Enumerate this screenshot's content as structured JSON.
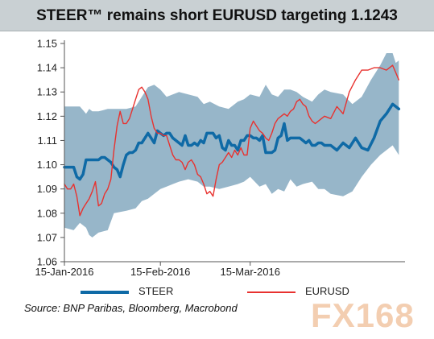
{
  "title": "STEER™ remains short EURUSD targeting 1.1243",
  "source": "Source:  BNP Paribas, Bloomberg, Macrobond",
  "watermark": "FX168",
  "colors": {
    "steer": "#0f6aa6",
    "eurusd": "#e8322f",
    "band": "#97b6c9",
    "axis": "#555555"
  },
  "chart_data": {
    "type": "line",
    "title": "STEER™ remains short EURUSD targeting 1.1243",
    "ylim": [
      1.06,
      1.15
    ],
    "y_ticks": [
      "1.06",
      "1.07",
      "1.08",
      "1.09",
      "1.10",
      "1.11",
      "1.12",
      "1.13",
      "1.14",
      "1.15"
    ],
    "x_range": [
      0,
      110
    ],
    "x_ticks": [
      {
        "x": 0,
        "label": "15-Jan-2016"
      },
      {
        "x": 31,
        "label": "15-Feb-2016"
      },
      {
        "x": 60,
        "label": "15-Mar-2016"
      }
    ],
    "legend": [
      "STEER",
      "EURUSD"
    ],
    "band": {
      "x": [
        0,
        3,
        5,
        7,
        8,
        9,
        11,
        14,
        16,
        20,
        23,
        25,
        27,
        29,
        31,
        33,
        35,
        37,
        40,
        43,
        45,
        47,
        50,
        53,
        56,
        58,
        60,
        63,
        65,
        67,
        69,
        71,
        73,
        75,
        77,
        80,
        82,
        84,
        86,
        90,
        93,
        96,
        99,
        102,
        104,
        106,
        107,
        108
      ],
      "upper": [
        1.124,
        1.124,
        1.124,
        1.121,
        1.123,
        1.122,
        1.122,
        1.123,
        1.123,
        1.123,
        1.124,
        1.128,
        1.132,
        1.133,
        1.131,
        1.128,
        1.129,
        1.13,
        1.129,
        1.128,
        1.125,
        1.126,
        1.124,
        1.123,
        1.126,
        1.127,
        1.129,
        1.128,
        1.133,
        1.129,
        1.128,
        1.131,
        1.131,
        1.13,
        1.128,
        1.126,
        1.129,
        1.131,
        1.13,
        1.129,
        1.125,
        1.128,
        1.135,
        1.141,
        1.146,
        1.146,
        1.142,
        1.143
      ],
      "lower": [
        1.074,
        1.073,
        1.076,
        1.074,
        1.071,
        1.07,
        1.072,
        1.073,
        1.08,
        1.081,
        1.082,
        1.085,
        1.086,
        1.088,
        1.09,
        1.091,
        1.092,
        1.093,
        1.094,
        1.093,
        1.091,
        1.091,
        1.09,
        1.091,
        1.092,
        1.093,
        1.095,
        1.091,
        1.092,
        1.088,
        1.09,
        1.089,
        1.094,
        1.091,
        1.092,
        1.093,
        1.09,
        1.09,
        1.088,
        1.087,
        1.089,
        1.095,
        1.1,
        1.104,
        1.106,
        1.108,
        1.106,
        1.104
      ]
    },
    "series": [
      {
        "name": "STEER",
        "x": [
          0,
          3,
          4,
          5,
          6,
          7,
          8,
          9,
          11,
          12,
          13,
          14,
          15,
          16,
          17,
          18,
          19,
          20,
          21,
          22,
          23,
          24,
          25,
          26,
          27,
          28,
          29,
          30,
          31,
          32,
          33,
          34,
          35,
          36,
          37,
          38,
          39,
          40,
          41,
          42,
          43,
          44,
          45,
          46,
          47,
          48,
          49,
          50,
          51,
          52,
          53,
          54,
          55,
          56,
          57,
          58,
          59,
          60,
          61,
          62,
          63,
          64,
          65,
          66,
          67,
          68,
          69,
          70,
          71,
          72,
          73,
          74,
          75,
          76,
          77,
          78,
          79,
          80,
          81,
          82,
          83,
          84,
          86,
          88,
          90,
          92,
          94,
          96,
          98,
          100,
          102,
          104,
          106,
          107,
          108
        ],
        "y": [
          1.099,
          1.099,
          1.095,
          1.094,
          1.096,
          1.102,
          1.102,
          1.102,
          1.102,
          1.103,
          1.103,
          1.102,
          1.101,
          1.099,
          1.098,
          1.095,
          1.1,
          1.104,
          1.105,
          1.105,
          1.106,
          1.109,
          1.109,
          1.111,
          1.113,
          1.111,
          1.109,
          1.114,
          1.113,
          1.112,
          1.113,
          1.113,
          1.111,
          1.11,
          1.109,
          1.108,
          1.112,
          1.108,
          1.108,
          1.109,
          1.108,
          1.11,
          1.109,
          1.113,
          1.113,
          1.113,
          1.111,
          1.112,
          1.107,
          1.106,
          1.11,
          1.108,
          1.108,
          1.106,
          1.11,
          1.11,
          1.112,
          1.112,
          1.111,
          1.111,
          1.11,
          1.112,
          1.105,
          1.105,
          1.105,
          1.106,
          1.111,
          1.112,
          1.117,
          1.11,
          1.111,
          1.111,
          1.111,
          1.111,
          1.11,
          1.109,
          1.11,
          1.108,
          1.108,
          1.109,
          1.109,
          1.108,
          1.108,
          1.106,
          1.109,
          1.107,
          1.111,
          1.107,
          1.106,
          1.111,
          1.118,
          1.121,
          1.125,
          1.124,
          1.123
        ]
      },
      {
        "name": "EURUSD",
        "x": [
          0,
          1,
          2,
          3,
          4,
          5,
          6,
          7,
          8,
          9,
          10,
          11,
          12,
          13,
          14,
          15,
          16,
          17,
          18,
          19,
          20,
          21,
          22,
          23,
          24,
          25,
          26,
          27,
          28,
          29,
          30,
          31,
          32,
          33,
          34,
          35,
          36,
          37,
          38,
          39,
          40,
          41,
          42,
          43,
          44,
          45,
          46,
          47,
          48,
          49,
          50,
          51,
          52,
          53,
          54,
          55,
          56,
          57,
          58,
          59,
          60,
          61,
          62,
          63,
          64,
          65,
          66,
          67,
          68,
          69,
          70,
          71,
          72,
          73,
          74,
          75,
          76,
          77,
          78,
          79,
          80,
          81,
          82,
          84,
          86,
          88,
          90,
          92,
          94,
          96,
          98,
          100,
          102,
          104,
          106,
          107,
          108
        ],
        "y": [
          1.092,
          1.09,
          1.09,
          1.092,
          1.087,
          1.079,
          1.082,
          1.084,
          1.086,
          1.089,
          1.093,
          1.083,
          1.084,
          1.088,
          1.09,
          1.094,
          1.106,
          1.116,
          1.122,
          1.117,
          1.117,
          1.119,
          1.123,
          1.127,
          1.131,
          1.132,
          1.13,
          1.127,
          1.12,
          1.115,
          1.113,
          1.113,
          1.112,
          1.112,
          1.108,
          1.104,
          1.102,
          1.102,
          1.101,
          1.098,
          1.101,
          1.102,
          1.1,
          1.096,
          1.095,
          1.092,
          1.088,
          1.089,
          1.087,
          1.094,
          1.1,
          1.101,
          1.103,
          1.105,
          1.103,
          1.106,
          1.104,
          1.107,
          1.104,
          1.104,
          1.115,
          1.118,
          1.116,
          1.114,
          1.113,
          1.111,
          1.11,
          1.113,
          1.117,
          1.119,
          1.12,
          1.121,
          1.12,
          1.122,
          1.123,
          1.126,
          1.127,
          1.125,
          1.124,
          1.12,
          1.118,
          1.117,
          1.118,
          1.12,
          1.119,
          1.124,
          1.121,
          1.13,
          1.135,
          1.139,
          1.139,
          1.14,
          1.14,
          1.139,
          1.141,
          1.138,
          1.135
        ]
      }
    ]
  }
}
